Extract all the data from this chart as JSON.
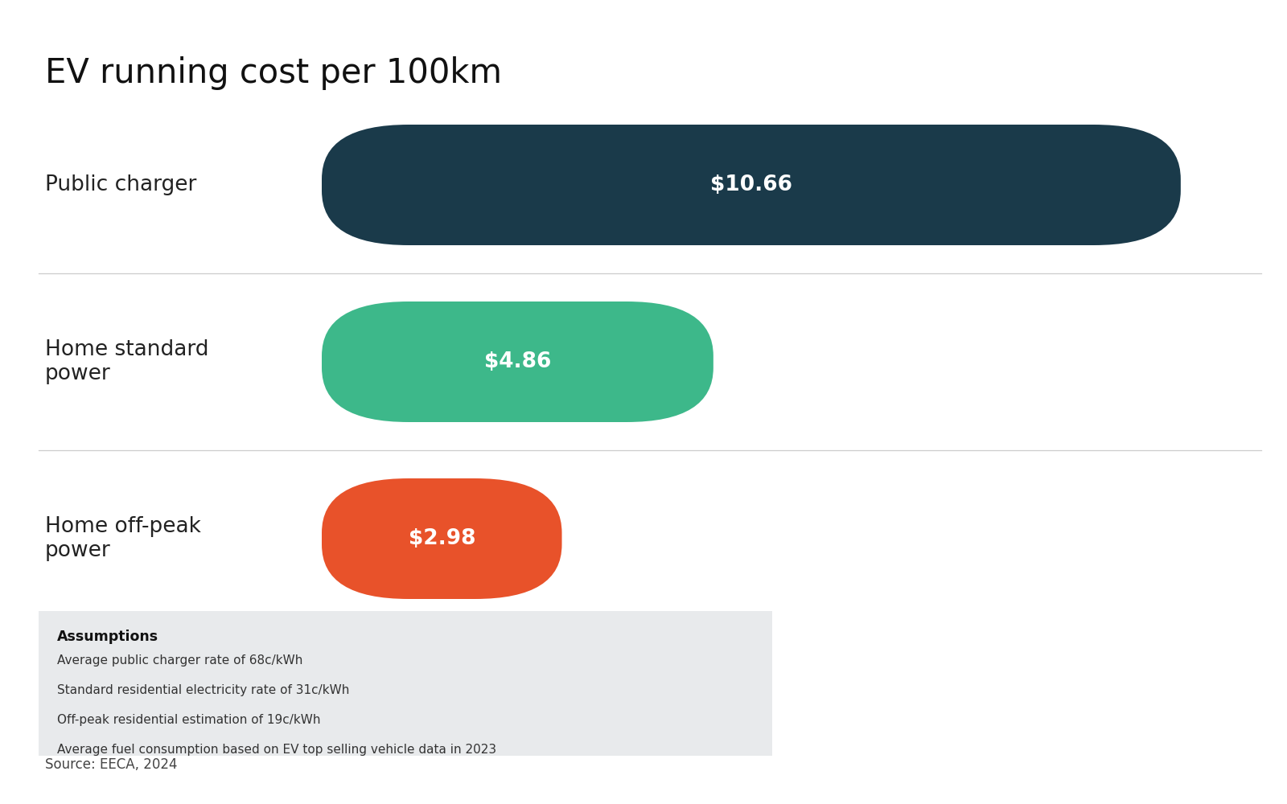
{
  "title": "EV running cost per 100km",
  "categories": [
    "Public charger",
    "Home standard\npower",
    "Home off-peak\npower"
  ],
  "values": [
    10.66,
    4.86,
    2.98
  ],
  "labels": [
    "$10.66",
    "$4.86",
    "$2.98"
  ],
  "colors": [
    "#1a3a4a",
    "#3db88a",
    "#e8522a"
  ],
  "max_value": 11.5,
  "background_color": "#ffffff",
  "assumptions_title": "Assumptions",
  "assumptions_lines": [
    "Average public charger rate of 68c/kWh",
    "Standard residential electricity rate of 31c/kWh",
    "Off-peak residential estimation of 19c/kWh",
    "Average fuel consumption based on EV top selling vehicle data in 2023"
  ],
  "source_text": "Source: EECA, 2024",
  "title_fontsize": 30,
  "bar_label_fontsize": 19,
  "category_fontsize": 19,
  "assumptions_box_color": "#e8eaec",
  "figsize": [
    16,
    10
  ]
}
